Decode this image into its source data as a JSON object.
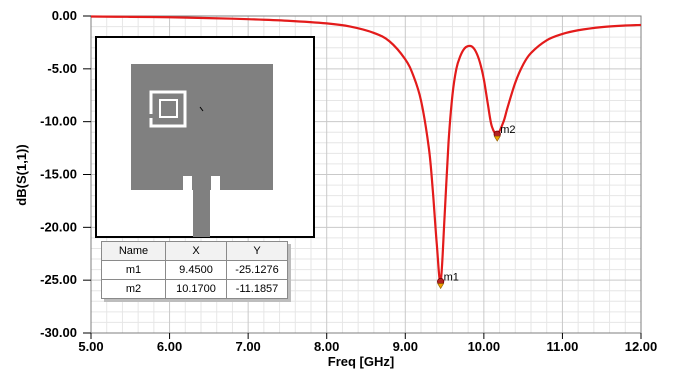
{
  "chart_data": {
    "type": "line",
    "xlabel": "Freq [GHz]",
    "ylabel": "dB(S(1,1))",
    "xlim": [
      5.0,
      12.0
    ],
    "ylim": [
      -30.0,
      0.0
    ],
    "x_ticks": [
      "5.00",
      "6.00",
      "7.00",
      "8.00",
      "9.00",
      "10.00",
      "11.00",
      "12.00"
    ],
    "y_ticks": [
      "0.00",
      "-5.00",
      "-10.00",
      "-15.00",
      "-20.00",
      "-25.00",
      "-30.00"
    ],
    "grid": true,
    "series": [
      {
        "color": "#e31b1b",
        "x": [
          5.0,
          5.5,
          6.0,
          6.5,
          7.0,
          7.5,
          8.0,
          8.3,
          8.6,
          8.8,
          9.0,
          9.1,
          9.2,
          9.3,
          9.35,
          9.4,
          9.45,
          9.5,
          9.55,
          9.6,
          9.65,
          9.7,
          9.75,
          9.8,
          9.85,
          9.9,
          9.95,
          10.0,
          10.05,
          10.1,
          10.17,
          10.25,
          10.3,
          10.4,
          10.5,
          10.6,
          10.8,
          11.0,
          11.2,
          11.5,
          11.8,
          12.0
        ],
        "y": [
          -0.05,
          -0.08,
          -0.12,
          -0.2,
          -0.3,
          -0.45,
          -0.7,
          -1.0,
          -1.6,
          -2.4,
          -4.1,
          -5.6,
          -8.0,
          -12.5,
          -16.5,
          -21.5,
          -25.13,
          -19.0,
          -12.0,
          -7.5,
          -5.0,
          -3.8,
          -3.1,
          -2.85,
          -2.9,
          -3.4,
          -4.4,
          -6.0,
          -8.3,
          -10.4,
          -11.19,
          -10.0,
          -8.7,
          -6.3,
          -4.6,
          -3.5,
          -2.3,
          -1.7,
          -1.35,
          -1.05,
          -0.9,
          -0.85
        ]
      }
    ],
    "markers": [
      {
        "name": "m1",
        "x": 9.45,
        "y": -25.1276
      },
      {
        "name": "m2",
        "x": 10.17,
        "y": -11.1857
      }
    ]
  },
  "marker_table": {
    "headers": [
      "Name",
      "X",
      "Y"
    ],
    "rows": [
      [
        "m1",
        "9.4500",
        "-25.1276"
      ],
      [
        "m2",
        "10.1700",
        "-11.1857"
      ]
    ]
  },
  "inset": {
    "patch_color": "#808080"
  }
}
